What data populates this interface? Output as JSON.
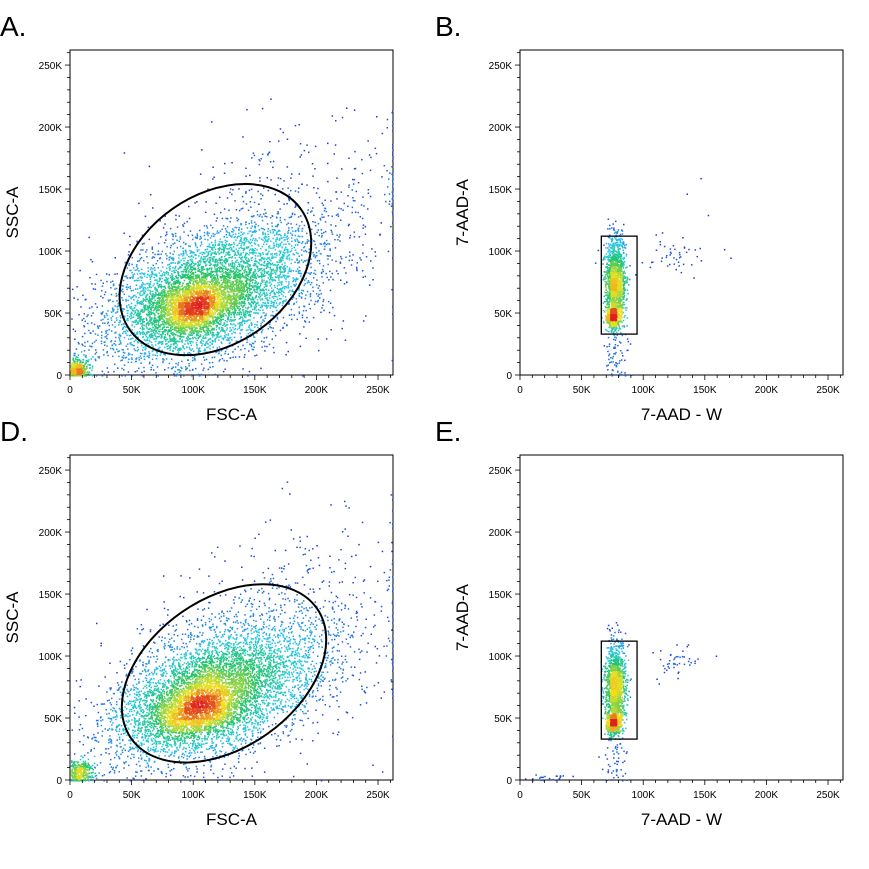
{
  "figure": {
    "panels": [
      {
        "id": "A",
        "letter": "A.",
        "type": "scatter-density",
        "gate": "ellipse"
      },
      {
        "id": "B",
        "letter": "B.",
        "type": "scatter-density",
        "gate": "rectangle"
      },
      {
        "id": "D",
        "letter": "D.",
        "type": "scatter-density",
        "gate": "ellipse"
      },
      {
        "id": "E",
        "letter": "E.",
        "type": "scatter-density",
        "gate": "rectangle"
      }
    ]
  },
  "colors": {
    "density_low": "#1f1fd6",
    "density_mid_low": "#27c8e8",
    "density_mid": "#22c46a",
    "density_high": "#f2e11f",
    "density_max": "#e02020",
    "gate": "#000000"
  },
  "chart_data": [
    {
      "type": "scatter",
      "panel": "A.",
      "xlabel": "FSC-A",
      "ylabel": "SSC-A",
      "xlim": [
        0,
        262144
      ],
      "ylim": [
        0,
        262144
      ],
      "x_ticks": [
        0,
        50000,
        100000,
        150000,
        200000,
        250000
      ],
      "x_tick_labels": [
        "0",
        "50K",
        "100K",
        "150K",
        "200K",
        "250K"
      ],
      "y_ticks": [
        0,
        50000,
        100000,
        150000,
        200000,
        250000
      ],
      "y_tick_labels": [
        "0",
        "50K",
        "100K",
        "150K",
        "200K",
        "250K"
      ],
      "populations": [
        {
          "center": [
            110000,
            65000
          ],
          "sd": [
            42000,
            28000
          ],
          "rho": 0.45,
          "n": 5200
        },
        {
          "center": [
            100000,
            55000
          ],
          "sd": [
            18000,
            12000
          ],
          "rho": 0.3,
          "n": 1400
        },
        {
          "center": [
            175000,
            115000
          ],
          "sd": [
            50000,
            45000
          ],
          "rho": 0.3,
          "n": 600
        },
        {
          "center": [
            5000,
            4000
          ],
          "sd": [
            5000,
            5000
          ],
          "rho": 0.0,
          "n": 450
        },
        {
          "center": [
            262000,
            150000
          ],
          "sd": [
            800,
            40000
          ],
          "rho": 0.0,
          "n": 60
        }
      ],
      "gate": {
        "shape": "ellipse",
        "center": [
          118000,
          85000
        ],
        "semi_axes": [
          85000,
          60000
        ],
        "angle_deg": 35
      }
    },
    {
      "type": "scatter",
      "panel": "B.",
      "xlabel": "7-AAD - W",
      "ylabel": "7-AAD-A",
      "xlim": [
        0,
        262144
      ],
      "ylim": [
        0,
        262144
      ],
      "x_ticks": [
        0,
        50000,
        100000,
        150000,
        200000,
        250000
      ],
      "x_tick_labels": [
        "0",
        "50K",
        "100K",
        "150K",
        "200K",
        "250K"
      ],
      "y_ticks": [
        0,
        50000,
        100000,
        150000,
        200000,
        250000
      ],
      "y_tick_labels": [
        "0",
        "50K",
        "100K",
        "150K",
        "200K",
        "250K"
      ],
      "populations": [
        {
          "center": [
            77000,
            75000
          ],
          "sd": [
            4000,
            17000
          ],
          "rho": 0.0,
          "n": 1500
        },
        {
          "center": [
            75000,
            47000
          ],
          "sd": [
            2500,
            4000
          ],
          "rho": 0.0,
          "n": 500
        },
        {
          "center": [
            78000,
            12000
          ],
          "sd": [
            5000,
            10000
          ],
          "rho": 0.0,
          "n": 60
        },
        {
          "center": [
            125000,
            95000
          ],
          "sd": [
            12000,
            8000
          ],
          "rho": 0.0,
          "n": 45
        },
        {
          "center": [
            150000,
            120000
          ],
          "sd": [
            20000,
            20000
          ],
          "rho": 0.0,
          "n": 6
        }
      ],
      "gate": {
        "shape": "rectangle",
        "x_range": [
          66000,
          95000
        ],
        "y_range": [
          33000,
          112000
        ]
      }
    },
    {
      "type": "scatter",
      "panel": "D.",
      "xlabel": "FSC-A",
      "ylabel": "SSC-A",
      "xlim": [
        0,
        262144
      ],
      "ylim": [
        0,
        262144
      ],
      "x_ticks": [
        0,
        50000,
        100000,
        150000,
        200000,
        250000
      ],
      "x_tick_labels": [
        "0",
        "50K",
        "100K",
        "150K",
        "200K",
        "250K"
      ],
      "y_ticks": [
        0,
        50000,
        100000,
        150000,
        200000,
        250000
      ],
      "y_tick_labels": [
        "0",
        "50K",
        "100K",
        "150K",
        "200K",
        "250K"
      ],
      "populations": [
        {
          "center": [
            115000,
            70000
          ],
          "sd": [
            42000,
            28000
          ],
          "rho": 0.45,
          "n": 5400
        },
        {
          "center": [
            102000,
            58000
          ],
          "sd": [
            18000,
            12000
          ],
          "rho": 0.3,
          "n": 1400
        },
        {
          "center": [
            185000,
            120000
          ],
          "sd": [
            50000,
            45000
          ],
          "rho": 0.3,
          "n": 650
        },
        {
          "center": [
            6000,
            6000
          ],
          "sd": [
            6000,
            6000
          ],
          "rho": 0.0,
          "n": 420
        },
        {
          "center": [
            262000,
            140000
          ],
          "sd": [
            800,
            45000
          ],
          "rho": 0.0,
          "n": 70
        }
      ],
      "gate": {
        "shape": "ellipse",
        "center": [
          125000,
          86000
        ],
        "semi_axes": [
          92000,
          60000
        ],
        "angle_deg": 35
      }
    },
    {
      "type": "scatter",
      "panel": "E.",
      "xlabel": "7-AAD - W",
      "ylabel": "7-AAD-A",
      "xlim": [
        0,
        262144
      ],
      "ylim": [
        0,
        262144
      ],
      "x_ticks": [
        0,
        50000,
        100000,
        150000,
        200000,
        250000
      ],
      "x_tick_labels": [
        "0",
        "50K",
        "100K",
        "150K",
        "200K",
        "250K"
      ],
      "y_ticks": [
        0,
        50000,
        100000,
        150000,
        200000,
        250000
      ],
      "y_tick_labels": [
        "0",
        "50K",
        "100K",
        "150K",
        "200K",
        "250K"
      ],
      "populations": [
        {
          "center": [
            77000,
            75000
          ],
          "sd": [
            4000,
            17000
          ],
          "rho": 0.0,
          "n": 1500
        },
        {
          "center": [
            75000,
            46000
          ],
          "sd": [
            2500,
            4000
          ],
          "rho": 0.0,
          "n": 500
        },
        {
          "center": [
            78000,
            12000
          ],
          "sd": [
            5000,
            10000
          ],
          "rho": 0.0,
          "n": 50
        },
        {
          "center": [
            125000,
            95000
          ],
          "sd": [
            12000,
            8000
          ],
          "rho": 0.0,
          "n": 45
        },
        {
          "center": [
            20000,
            2000
          ],
          "sd": [
            15000,
            1500
          ],
          "rho": 0.0,
          "n": 25
        }
      ],
      "gate": {
        "shape": "rectangle",
        "x_range": [
          66000,
          95000
        ],
        "y_range": [
          33000,
          112000
        ]
      }
    }
  ]
}
